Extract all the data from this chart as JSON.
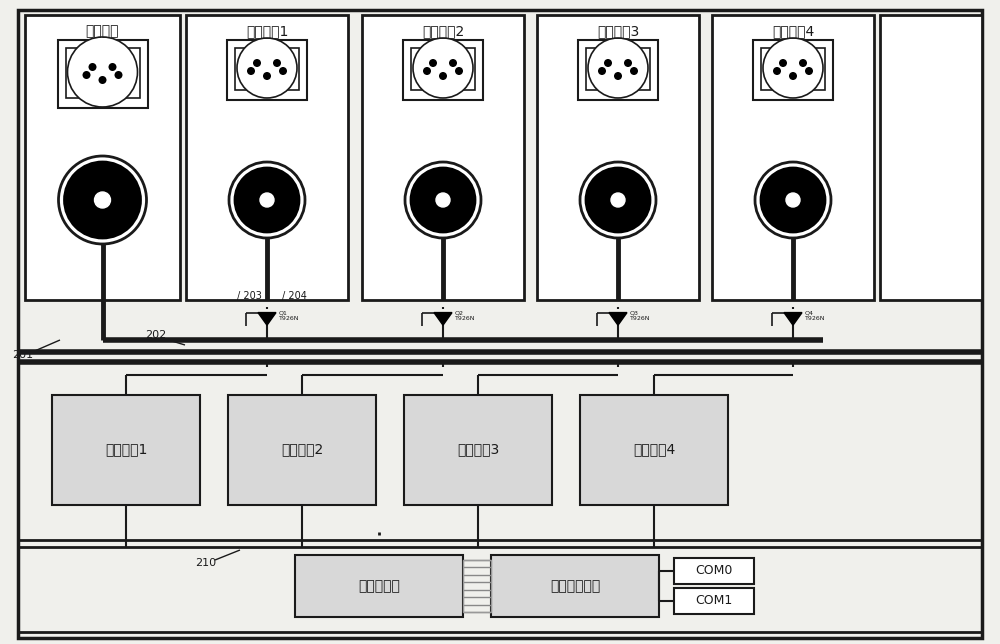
{
  "bg_color": "#f0f0ec",
  "line_color": "#1a1a1a",
  "white": "#ffffff",
  "gray_light": "#d8d8d8",
  "title_input": "输入端口",
  "title_ch": [
    "输出通道1",
    "输出通道2",
    "输出通道3",
    "输出通道4"
  ],
  "label_201": "201",
  "label_202": "202",
  "label_203": "203",
  "label_204": "204",
  "label_210": "210",
  "label_mod": [
    "通道模块1",
    "通道模块2",
    "通道模块3",
    "通道模块4"
  ],
  "label_proc": "处理器模块",
  "label_comm": "通讯存储模块",
  "label_com0": "COM0",
  "label_com1": "COM1",
  "q_labels": [
    "Q1\nT926N",
    "Q2\nT926N",
    "Q3\nT926N",
    "Q4\nT926N"
  ]
}
